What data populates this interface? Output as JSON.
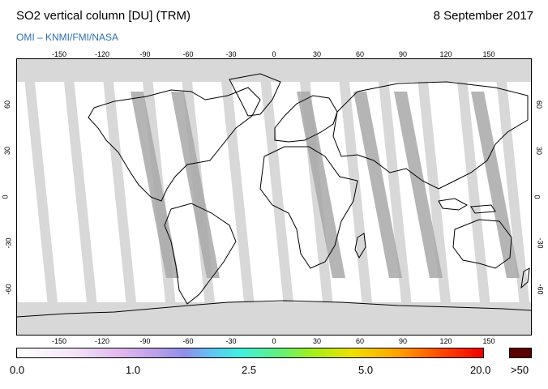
{
  "header": {
    "title": "SO2 vertical column [DU] (TRM)",
    "date": "8 September 2017",
    "credit": "OMI  –  KNMI/FMI/NASA"
  },
  "map": {
    "lon_ticks": [
      "-150",
      "-120",
      "-90",
      "-60",
      "-30",
      "0",
      "30",
      "60",
      "90",
      "120",
      "150"
    ],
    "lat_ticks": [
      "60",
      "30",
      "0",
      "-30",
      "-60"
    ],
    "colors": {
      "ocean": "#ffffff",
      "orbit_gap": "#d8d8d8",
      "land_overpass": "#a8a8a8",
      "coastline": "#000000"
    }
  },
  "colorbar": {
    "labels": [
      "0.0",
      "1.0",
      "2.5",
      "5.0",
      "20.0"
    ],
    "overflow_label": ">50",
    "overflow_color": "#5a0000"
  }
}
